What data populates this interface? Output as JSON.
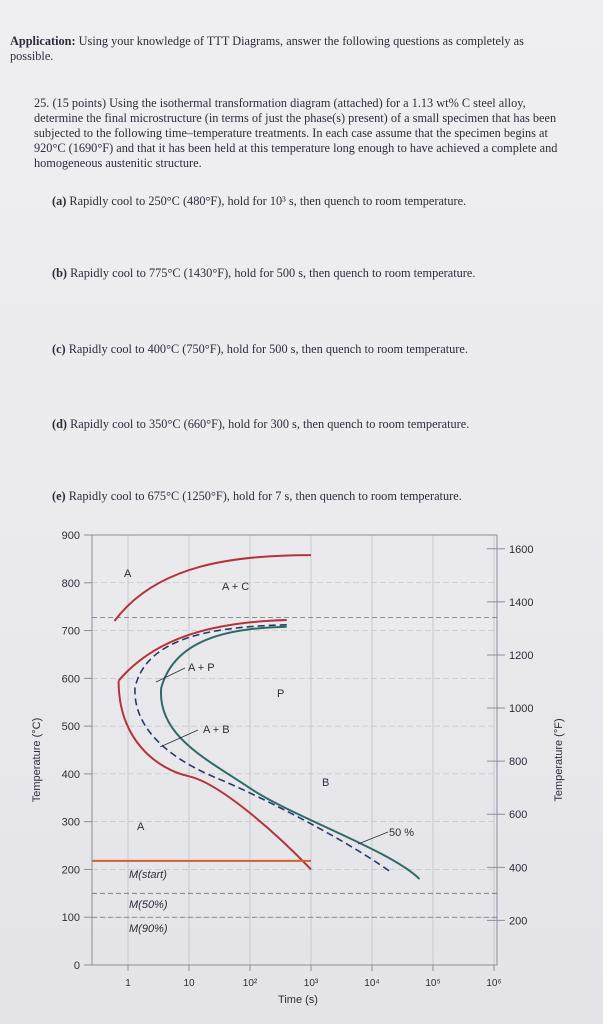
{
  "header": {
    "label": "Application:",
    "text": "Using your knowledge of TTT Diagrams, answer the following questions as completely as possible."
  },
  "question": {
    "number": "25.",
    "points": "(15 points)",
    "text": "Using the isothermal transformation diagram (attached) for a 1.13 wt% C steel alloy, determine the final microstructure (in terms of just the phase(s) present) of a small specimen that has been subjected to the following time–temperature treatments. In each case assume that the specimen begins at 920°C (1690°F) and that it has been held at this temperature long enough to have achieved a complete and homogeneous austenitic structure."
  },
  "parts": [
    {
      "label": "(a)",
      "text": "Rapidly cool to 250°C (480°F), hold for 10³ s, then quench to room temperature."
    },
    {
      "label": "(b)",
      "text": "Rapidly cool to 775°C (1430°F), hold for 500 s, then quench to room temperature."
    },
    {
      "label": "(c)",
      "text": "Rapidly cool to 400°C (750°F), hold for 500 s, then quench to room temperature."
    },
    {
      "label": "(d)",
      "text": "Rapidly cool to 350°C (660°F), hold for 300 s, then quench to room temperature."
    },
    {
      "label": "(e)",
      "text": "Rapidly cool to 675°C (1250°F), hold for 7 s, then quench to room temperature."
    }
  ],
  "chart_data": {
    "type": "line",
    "xlabel": "Time (s)",
    "ylabel_left": "Temperature (°C)",
    "ylabel_right": "Temperature (°F)",
    "x_scale": "log",
    "x_ticks": [
      "1",
      "10",
      "10²",
      "10³",
      "10⁴",
      "10⁵",
      "10⁶"
    ],
    "y_ticks_left": [
      "0",
      "100",
      "200",
      "300",
      "400",
      "500",
      "600",
      "700",
      "800",
      "900"
    ],
    "y_ticks_right": [
      "200",
      "400",
      "600",
      "800",
      "1000",
      "1200",
      "1400",
      "1600"
    ],
    "ylim_left": [
      0,
      900
    ],
    "grid": true,
    "colors": {
      "start": "#b3343a",
      "finish": "#2e6a66",
      "half": "#2a3a6a",
      "ms": "#d0622c",
      "grid": "#b0b3c0"
    },
    "series": [
      {
        "key": "start_upper",
        "points": [
          [
            0.6,
            720
          ],
          [
            3,
            800
          ],
          [
            100,
            855
          ],
          [
            1000,
            858
          ]
        ]
      },
      {
        "key": "start",
        "points": [
          [
            0.7,
            595
          ],
          [
            1.5,
            660
          ],
          [
            4,
            700
          ],
          [
            30,
            718
          ],
          [
            400,
            722
          ]
        ]
      },
      {
        "key": "start_lower",
        "points": [
          [
            0.7,
            595
          ],
          [
            0.9,
            480
          ],
          [
            2,
            420
          ],
          [
            10,
            395
          ],
          [
            100,
            330
          ],
          [
            500,
            240
          ],
          [
            1000,
            200
          ]
        ]
      },
      {
        "key": "half",
        "points": [
          [
            1.3,
            580
          ],
          [
            3,
            660
          ],
          [
            20,
            708
          ],
          [
            400,
            712
          ],
          [
            2.5,
            460
          ],
          [
            30,
            390
          ],
          [
            1000,
            290
          ],
          [
            20000,
            195
          ]
        ]
      },
      {
        "key": "finish",
        "points": [
          [
            3.5,
            580
          ],
          [
            10,
            670
          ],
          [
            100,
            705
          ],
          [
            400,
            708
          ],
          [
            6,
            450
          ],
          [
            100,
            370
          ],
          [
            5000,
            280
          ],
          [
            60000,
            180
          ]
        ]
      }
    ],
    "lines": [
      {
        "name": "M(start)",
        "temperature": 220
      },
      {
        "name": "M(50%)",
        "temperature": 150
      },
      {
        "name": "M(90%)",
        "temperature": 100
      }
    ],
    "eutectoid_temperature": 727,
    "region_labels": [
      "A",
      "A + C",
      "A + P",
      "P",
      "A + B",
      "B",
      "A",
      "50 %"
    ],
    "ms_labels": [
      "M(start)",
      "M(50%)",
      "M(90%)"
    ]
  }
}
